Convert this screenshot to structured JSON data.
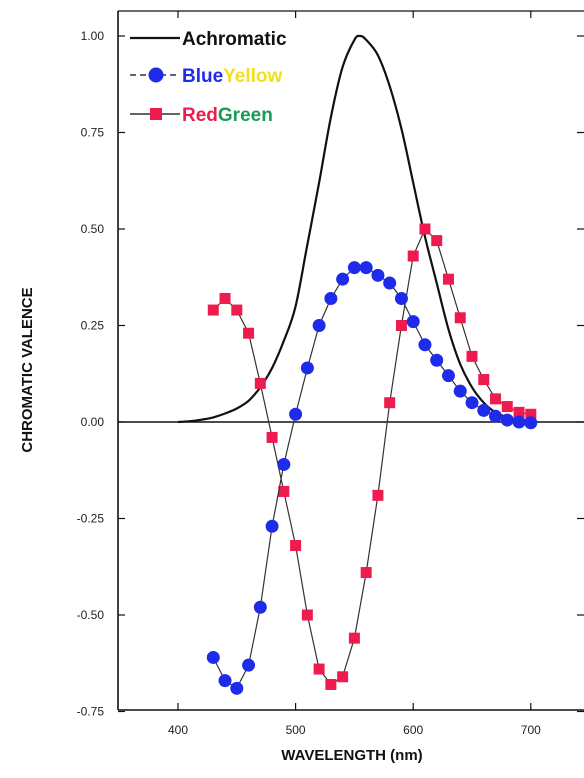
{
  "colors": {
    "axis": "#111111",
    "achromatic": "#111111",
    "blue_yellow_marker": "#1f2bea",
    "red_green_marker": "#ee1c4e",
    "legend_blue": "#1f2bea",
    "legend_yellow": "#f2e01c",
    "legend_red": "#ee1c4e",
    "legend_green": "#199a55"
  },
  "chart_data": {
    "type": "line",
    "title": "",
    "xlabel": "WAVELENGTH (nm)",
    "ylabel": "CHROMATIC VALENCE",
    "xlim": [
      355,
      720
    ],
    "ylim": [
      -0.75,
      1.05
    ],
    "grid": false,
    "legend_position": "top-left",
    "x_ticks": [
      400,
      500,
      600,
      700
    ],
    "x_tick_labels": [
      "400",
      "500",
      "600",
      "700"
    ],
    "y_ticks": [
      1.0,
      0.75,
      0.5,
      0.25,
      0.0,
      -0.25,
      -0.5,
      -0.75
    ],
    "y_tick_labels": [
      "1.00",
      "0.75",
      "0.50",
      "0.25",
      "0.00",
      "-0.25",
      "-0.50",
      "-0.75"
    ],
    "legend": [
      {
        "key": "achromatic",
        "parts": [
          {
            "text": "Achromatic",
            "color": "#111111"
          }
        ]
      },
      {
        "key": "blue_yellow",
        "parts": [
          {
            "text": "Blue",
            "color": "#1f2bea"
          },
          {
            "text": "Yellow",
            "color": "#f2e01c"
          }
        ]
      },
      {
        "key": "red_green",
        "parts": [
          {
            "text": "Red",
            "color": "#ee1c4e"
          },
          {
            "text": "Green",
            "color": "#199a55"
          }
        ]
      }
    ],
    "series": [
      {
        "key": "achromatic",
        "marker": "none",
        "x": [
          400,
          410,
          420,
          430,
          440,
          450,
          460,
          470,
          480,
          490,
          500,
          510,
          520,
          530,
          540,
          550,
          555,
          560,
          570,
          580,
          590,
          600,
          610,
          620,
          630,
          640,
          650,
          660,
          670,
          680,
          690,
          700
        ],
        "y": [
          0.0,
          0.002,
          0.006,
          0.012,
          0.022,
          0.035,
          0.055,
          0.09,
          0.14,
          0.21,
          0.3,
          0.46,
          0.62,
          0.79,
          0.92,
          0.99,
          1.0,
          0.99,
          0.95,
          0.87,
          0.76,
          0.62,
          0.48,
          0.36,
          0.24,
          0.15,
          0.09,
          0.05,
          0.025,
          0.012,
          0.005,
          0.001
        ]
      },
      {
        "key": "blue_yellow",
        "marker": "circle",
        "x": [
          430,
          440,
          450,
          460,
          470,
          480,
          490,
          500,
          510,
          520,
          530,
          540,
          550,
          560,
          570,
          580,
          590,
          600,
          610,
          620,
          630,
          640,
          650,
          660,
          670,
          680,
          690,
          700
        ],
        "y": [
          -0.61,
          -0.67,
          -0.69,
          -0.63,
          -0.48,
          -0.27,
          -0.11,
          0.02,
          0.14,
          0.25,
          0.32,
          0.37,
          0.4,
          0.4,
          0.38,
          0.36,
          0.32,
          0.26,
          0.2,
          0.16,
          0.12,
          0.08,
          0.05,
          0.03,
          0.015,
          0.005,
          0.0,
          -0.002
        ]
      },
      {
        "key": "red_green",
        "marker": "square",
        "x": [
          430,
          440,
          450,
          460,
          470,
          480,
          490,
          500,
          510,
          520,
          530,
          540,
          550,
          560,
          570,
          580,
          590,
          600,
          610,
          620,
          630,
          640,
          650,
          660,
          670,
          680,
          690,
          700
        ],
        "y": [
          0.29,
          0.32,
          0.29,
          0.23,
          0.1,
          -0.04,
          -0.18,
          -0.32,
          -0.5,
          -0.64,
          -0.68,
          -0.66,
          -0.56,
          -0.39,
          -0.19,
          0.05,
          0.25,
          0.43,
          0.5,
          0.47,
          0.37,
          0.27,
          0.17,
          0.11,
          0.06,
          0.04,
          0.025,
          0.02
        ]
      }
    ]
  }
}
